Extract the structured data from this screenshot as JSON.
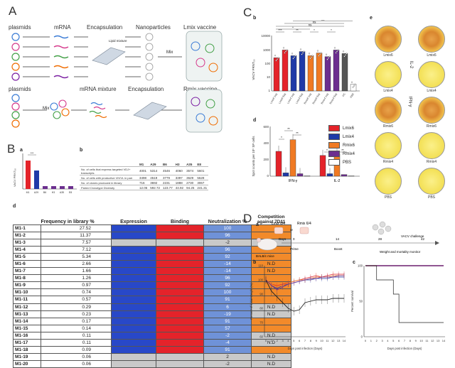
{
  "panels": {
    "A": "A",
    "B": "B",
    "C": "C",
    "D": "D"
  },
  "panelA": {
    "row1": [
      "plasmids",
      "mRNA",
      "Encapsulation",
      "Nanoparticles",
      "Lmix vaccine"
    ],
    "row2": [
      "plasmids",
      "mRNA mixture",
      "Encapsulation",
      "Rmix vaccine"
    ],
    "mix": "Mix",
    "lipid": "Lipid mixture",
    "mrna_tag": "mRNA"
  },
  "panelB": {
    "sub_a": "a",
    "sub_b": "b",
    "sub_d": "d",
    "a_ylabel": "VACV PRNT₅₀",
    "a_cats": [
      "M1",
      "A29",
      "B6",
      "H3",
      "A35",
      "E8"
    ],
    "a_sig": "***",
    "b_headers": [
      "",
      "M1",
      "A29",
      "B6",
      "H3",
      "A35",
      "E8"
    ],
    "b_rows": [
      [
        "No. of cells that express targeted VDJ+ transcripts",
        "4001",
        "5314",
        "4546",
        "4060",
        "3574",
        "5601"
      ],
      [
        "No. of cells with productive VH/VL in pair",
        "3498",
        "4519",
        "3779",
        "3397",
        "3629",
        "5628"
      ],
      [
        "No. of clones produced in library",
        "716",
        "3692",
        "2231",
        "1888",
        "2730",
        "3067"
      ],
      [
        "Paired Clonotype Diversity",
        "12.06",
        "592.72",
        "123.77",
        "44.92",
        "94.25",
        "241.31"
      ]
    ],
    "table_headers": [
      "",
      "Frequency in library %",
      "Expression",
      "Binding",
      "Neutralization %",
      "Competition against 7D11"
    ],
    "rows": [
      {
        "id": "M1-1",
        "freq": "27.52",
        "expr": "blue",
        "bind": "red",
        "neut": "100",
        "comp": "orange",
        "note": ""
      },
      {
        "id": "M1-2",
        "freq": "11.37",
        "expr": "blue",
        "bind": "red",
        "neut": "96",
        "comp": "orange",
        "note": ""
      },
      {
        "id": "M1-3",
        "freq": "7.57",
        "expr": "grey",
        "bind": "grey",
        "neut": "-2",
        "comp": "grey",
        "note": "N.D"
      },
      {
        "id": "M1-4",
        "freq": "7.12",
        "expr": "blue",
        "bind": "red",
        "neut": "96",
        "comp": "orange",
        "note": ""
      },
      {
        "id": "M1-5",
        "freq": "5.34",
        "expr": "blue",
        "bind": "red",
        "neut": "92",
        "comp": "orange",
        "note": ""
      },
      {
        "id": "M1-6",
        "freq": "2.66",
        "expr": "blue",
        "bind": "red",
        "neut": "-14",
        "comp": "orange",
        "note": "N.D"
      },
      {
        "id": "M1-7",
        "freq": "1.66",
        "expr": "blue",
        "bind": "red",
        "neut": "-14",
        "comp": "orange",
        "note": "N.D"
      },
      {
        "id": "M1-8",
        "freq": "1.26",
        "expr": "blue",
        "bind": "red",
        "neut": "96",
        "comp": "orange",
        "note": ""
      },
      {
        "id": "M1-9",
        "freq": "0.97",
        "expr": "blue",
        "bind": "red",
        "neut": "92",
        "comp": "orange",
        "note": ""
      },
      {
        "id": "M1-10",
        "freq": "0.74",
        "expr": "blue",
        "bind": "red",
        "neut": "100",
        "comp": "orange",
        "note": ""
      },
      {
        "id": "M1-11",
        "freq": "0.57",
        "expr": "blue",
        "bind": "red",
        "neut": "91",
        "comp": "orange",
        "note": ""
      },
      {
        "id": "M1-12",
        "freq": "0.29",
        "expr": "blue",
        "bind": "red",
        "neut": "6",
        "comp": "grey",
        "note": "N.D"
      },
      {
        "id": "M1-13",
        "freq": "0.23",
        "expr": "blue",
        "bind": "red",
        "neut": "-19",
        "comp": "grey",
        "note": "N.D"
      },
      {
        "id": "M1-14",
        "freq": "0.17",
        "expr": "blue",
        "bind": "red",
        "neut": "91",
        "comp": "orange",
        "note": ""
      },
      {
        "id": "M1-15",
        "freq": "0.14",
        "expr": "blue",
        "bind": "red",
        "neut": "57",
        "comp": "orange",
        "note": ""
      },
      {
        "id": "M1-16",
        "freq": "0.11",
        "expr": "blue",
        "bind": "red",
        "neut": "-2",
        "comp": "grey",
        "note": "N.D"
      },
      {
        "id": "M1-17",
        "freq": "0.11",
        "expr": "blue",
        "bind": "red",
        "neut": "-4",
        "comp": "grey",
        "note": "N.D"
      },
      {
        "id": "M1-18",
        "freq": "0.09",
        "expr": "blue",
        "bind": "red",
        "neut": "91",
        "comp": "orange",
        "note": ""
      },
      {
        "id": "M1-19",
        "freq": "0.06",
        "expr": "grey",
        "bind": "grey",
        "neut": "2",
        "comp": "grey",
        "note": "N.D"
      },
      {
        "id": "M1-20",
        "freq": "0.06",
        "expr": "grey",
        "bind": "grey",
        "neut": "-2",
        "comp": "grey",
        "note": "N.D"
      }
    ]
  },
  "panelC": {
    "sub_b": "b",
    "sub_d": "d",
    "sub_e": "e",
    "b_ylabel": "VACV PRNT₅₀",
    "b_cats": [
      "Lmix6 1ug",
      "Lmix6 5ug",
      "Lmix4 1ug",
      "Lmix4 5ug",
      "Rmix6 1ug",
      "Rmix6 5ug",
      "Rmix4 1ug",
      "Rmix4 5ug",
      "PC",
      "PBS"
    ],
    "b_sig": [
      "***",
      "**",
      "*",
      "*",
      "*",
      "ns",
      "ns",
      "ns",
      "*"
    ],
    "d_ylabel": "Spot counts per 10⁵ SP cells",
    "d_groups": [
      "IFN-γ",
      "IL-2"
    ],
    "d_sig": [
      "*",
      "**",
      "**",
      "*",
      "**",
      "**"
    ],
    "legend": [
      "Lmix6",
      "Lmix4",
      "Rmix6",
      "Rmix4",
      "PBS"
    ],
    "legend_colors": [
      "#e4232a",
      "#1f3aa8",
      "#f07a23",
      "#6c2e8f",
      "#ffffff"
    ],
    "e_left": [
      "Lmix6",
      "Lmix4",
      "Rmix6",
      "Rmix4",
      "PBS"
    ],
    "e_right": [
      "Lmix6",
      "Lmix4",
      "Rmix6",
      "Rmix4",
      "PBS"
    ],
    "e_axis_left": "IFN-γ",
    "e_axis_right": "IL-2"
  },
  "panelD": {
    "sub_a": "a",
    "sub_b": "b",
    "sub_c": "c",
    "groups_top": [
      "Lmix 6/4",
      "Rmix 6/4"
    ],
    "or_label": "or",
    "mouse_label": "BALB/c mice",
    "timeline": [
      "Days",
      "0",
      "14",
      "28",
      "42"
    ],
    "steps": [
      "Prime",
      "Boost",
      "Weight and mortality monitor"
    ],
    "challenge": "VACV challenge",
    "b_ylabel": "Percent of initial Weight (%)",
    "b_xlabel": "Days post infection (Days)",
    "c_ylabel": "Percent survival",
    "c_xlabel": "Days post infection (Days)",
    "b_yticks": [
      "110",
      "100",
      "90",
      "80",
      "70",
      "60"
    ],
    "c_yticks": [
      "100",
      "50",
      "0"
    ],
    "xticks": [
      "0",
      "1",
      "2",
      "3",
      "4",
      "5",
      "6",
      "7",
      "8",
      "9",
      "10",
      "11",
      "12",
      "13",
      "14"
    ]
  },
  "chart_data": [
    {
      "type": "bar",
      "title": "",
      "categories": [
        "Lmix6 1ug",
        "Lmix6 5ug",
        "Lmix4 1ug",
        "Lmix4 5ug",
        "Rmix6 1ug",
        "Rmix6 5ug",
        "Rmix4 1ug",
        "Rmix4 5ug",
        "PC",
        "PBS"
      ],
      "values": [
        250,
        900,
        350,
        700,
        350,
        550,
        300,
        900,
        500,
        3
      ],
      "colors": [
        "#e4232a",
        "#e4232a",
        "#1f3aa8",
        "#1f3aa8",
        "#f07a23",
        "#f07a23",
        "#6c2e8f",
        "#6c2e8f",
        "#555555",
        "#ffffff"
      ],
      "ylabel": "VACV PRNT₅₀",
      "yscale": "log",
      "ylim": [
        1,
        10000
      ]
    },
    {
      "type": "bar",
      "categories": [
        "IFN-γ",
        "IL-2"
      ],
      "series": [
        {
          "name": "Lmix6",
          "values": [
            300,
            250
          ]
        },
        {
          "name": "Lmix4",
          "values": [
            40,
            30
          ]
        },
        {
          "name": "Rmix6",
          "values": [
            440,
            270
          ]
        },
        {
          "name": "Rmix4",
          "values": [
            30,
            20
          ]
        },
        {
          "name": "PBS",
          "values": [
            5,
            5
          ]
        }
      ],
      "ylabel": "Spot counts per 10⁵ SP cells",
      "ylim": [
        0,
        600
      ]
    },
    {
      "type": "line",
      "x": [
        0,
        1,
        2,
        3,
        4,
        5,
        6,
        7,
        8,
        9,
        10,
        11,
        12,
        13,
        14
      ],
      "series": [
        {
          "values": [
            100,
            97,
            96,
            97,
            98,
            99,
            100,
            101,
            102,
            103,
            102,
            103,
            104,
            104,
            104
          ]
        },
        {
          "values": [
            100,
            96,
            94,
            96,
            97,
            98,
            99,
            100,
            100,
            101,
            101,
            101,
            102,
            102,
            102
          ]
        },
        {
          "values": [
            100,
            97,
            95,
            96,
            98,
            99,
            100,
            100,
            101,
            102,
            102,
            102,
            103,
            103,
            103
          ]
        },
        {
          "values": [
            100,
            96,
            93,
            95,
            97,
            98,
            99,
            100,
            101,
            101,
            102,
            102,
            102,
            103,
            103
          ]
        },
        {
          "values": [
            100,
            92,
            88,
            84,
            80,
            78,
            79,
            84,
            85,
            86,
            86,
            86,
            87,
            87,
            87
          ]
        }
      ],
      "colors": [
        "#e4232a",
        "#1f3aa8",
        "#f07a23",
        "#6c2e8f",
        "#222222"
      ],
      "xlabel": "Days post infection (Days)",
      "ylabel": "Percent of initial Weight (%)",
      "ylim": [
        60,
        110
      ]
    },
    {
      "type": "line",
      "x": [
        0,
        1,
        2,
        3,
        4,
        5,
        6,
        7,
        8,
        9,
        10,
        11,
        12,
        13,
        14
      ],
      "series": [
        {
          "values": [
            100,
            100,
            100,
            100,
            100,
            100,
            100,
            100,
            100,
            100,
            100,
            100,
            100,
            100,
            100
          ]
        },
        {
          "values": [
            100,
            100,
            100,
            100,
            100,
            100,
            100,
            100,
            100,
            100,
            100,
            100,
            100,
            100,
            100
          ]
        },
        {
          "values": [
            100,
            100,
            100,
            100,
            100,
            100,
            100,
            100,
            100,
            100,
            100,
            100,
            100,
            100,
            100
          ]
        },
        {
          "values": [
            100,
            100,
            100,
            100,
            100,
            100,
            100,
            100,
            100,
            100,
            100,
            100,
            100,
            100,
            100
          ]
        },
        {
          "values": [
            100,
            100,
            80,
            80,
            80,
            60,
            20,
            20,
            20,
            20,
            20,
            20,
            20,
            20,
            20
          ]
        }
      ],
      "colors": [
        "#e4232a",
        "#1f3aa8",
        "#f07a23",
        "#6c2e8f",
        "#222222"
      ],
      "xlabel": "Days post infection (Days)",
      "ylabel": "Percent survival",
      "ylim": [
        0,
        100
      ]
    }
  ]
}
